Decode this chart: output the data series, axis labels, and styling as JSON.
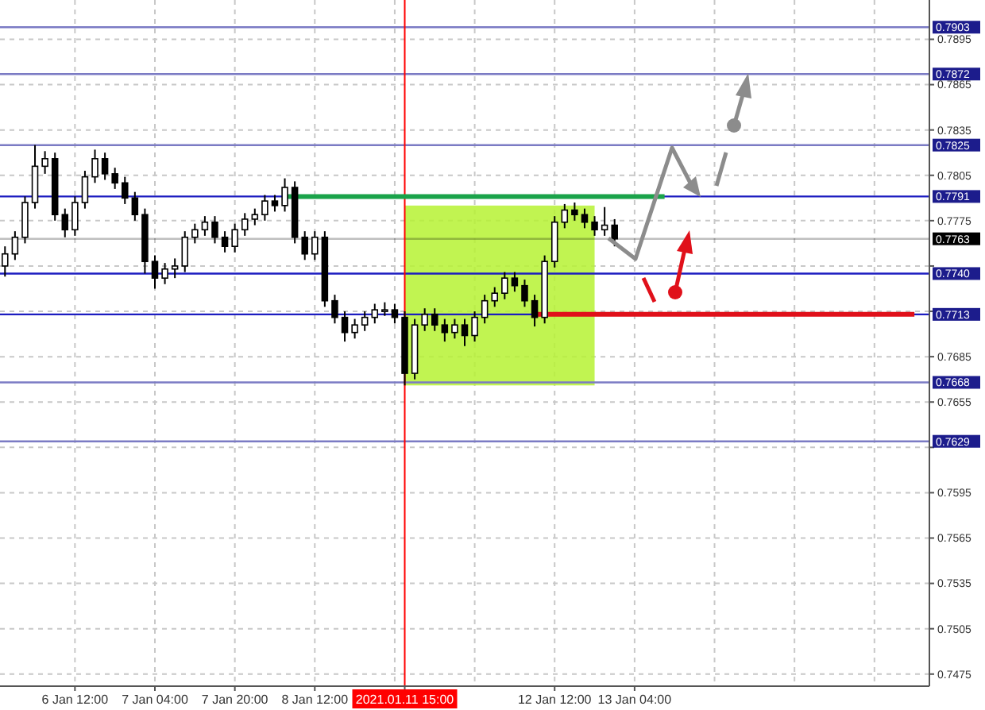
{
  "chart_data": {
    "type": "candlestick",
    "categories": [
      null,
      null,
      null,
      null,
      null,
      null,
      null,
      "6 Jan 12:00",
      null,
      null,
      null,
      null,
      null,
      null,
      null,
      "7 Jan 04:00",
      null,
      null,
      null,
      null,
      null,
      null,
      null,
      "7 Jan 20:00",
      null,
      null,
      null,
      null,
      null,
      null,
      null,
      "8 Jan 12:00",
      null,
      null,
      null,
      null,
      null,
      null,
      null,
      null,
      "2021.01.11 15:00",
      null,
      null,
      null,
      null,
      null,
      null,
      null,
      null,
      null,
      null,
      null,
      null,
      null,
      null,
      "12 Jan 12:00",
      null,
      null,
      null,
      null,
      null,
      null,
      null,
      "13 Jan 04:00",
      null,
      null,
      null,
      null,
      null,
      null,
      null,
      null,
      null,
      null,
      null,
      null,
      null,
      null,
      null,
      null,
      null,
      null,
      null,
      null,
      null,
      null,
      null,
      null,
      null,
      null,
      null,
      null,
      null
    ],
    "ohlc": [
      [
        0.7745,
        0.7758,
        0.7738,
        0.7753
      ],
      [
        0.7753,
        0.7768,
        0.7749,
        0.7764
      ],
      [
        0.7764,
        0.7791,
        0.776,
        0.7787
      ],
      [
        0.7787,
        0.7825,
        0.7783,
        0.7811
      ],
      [
        0.7811,
        0.7821,
        0.7806,
        0.7816
      ],
      [
        0.7816,
        0.782,
        0.7775,
        0.7779
      ],
      [
        0.7779,
        0.7783,
        0.7764,
        0.7769
      ],
      [
        0.7769,
        0.7791,
        0.7765,
        0.7787
      ],
      [
        0.7787,
        0.7808,
        0.7783,
        0.7804
      ],
      [
        0.7804,
        0.7822,
        0.78,
        0.7816
      ],
      [
        0.7816,
        0.782,
        0.7802,
        0.7806
      ],
      [
        0.7806,
        0.781,
        0.7796,
        0.78
      ],
      [
        0.78,
        0.7804,
        0.7786,
        0.779
      ],
      [
        0.779,
        0.7794,
        0.7775,
        0.7779
      ],
      [
        0.7779,
        0.7783,
        0.774,
        0.7748
      ],
      [
        0.7748,
        0.7752,
        0.773,
        0.7737
      ],
      [
        0.7737,
        0.7747,
        0.7733,
        0.7743
      ],
      [
        0.7743,
        0.775,
        0.7737,
        0.7745
      ],
      [
        0.7745,
        0.7768,
        0.7741,
        0.7764
      ],
      [
        0.7764,
        0.7773,
        0.776,
        0.7769
      ],
      [
        0.7769,
        0.7778,
        0.7765,
        0.7774
      ],
      [
        0.7774,
        0.7778,
        0.776,
        0.7764
      ],
      [
        0.7764,
        0.7768,
        0.7754,
        0.7758
      ],
      [
        0.7758,
        0.7773,
        0.7754,
        0.7769
      ],
      [
        0.7769,
        0.778,
        0.7765,
        0.7776
      ],
      [
        0.7776,
        0.7783,
        0.7772,
        0.7779
      ],
      [
        0.7779,
        0.7792,
        0.7775,
        0.7788
      ],
      [
        0.7788,
        0.7792,
        0.7781,
        0.7785
      ],
      [
        0.7785,
        0.7803,
        0.7781,
        0.7797
      ],
      [
        0.7797,
        0.7801,
        0.776,
        0.7764
      ],
      [
        0.7764,
        0.7768,
        0.7749,
        0.7753
      ],
      [
        0.7753,
        0.7768,
        0.7749,
        0.7764
      ],
      [
        0.7764,
        0.7768,
        0.7718,
        0.7722
      ],
      [
        0.7722,
        0.7726,
        0.7707,
        0.7711
      ],
      [
        0.7711,
        0.7715,
        0.7695,
        0.7701
      ],
      [
        0.7701,
        0.771,
        0.7697,
        0.7706
      ],
      [
        0.7706,
        0.7715,
        0.7702,
        0.7711
      ],
      [
        0.7711,
        0.772,
        0.7707,
        0.7716
      ],
      [
        0.7716,
        0.7721,
        0.7712,
        0.7716
      ],
      [
        0.7716,
        0.772,
        0.7707,
        0.7711
      ],
      [
        0.7711,
        0.7715,
        0.7666,
        0.7674
      ],
      [
        0.7674,
        0.771,
        0.767,
        0.7706
      ],
      [
        0.7706,
        0.7717,
        0.7702,
        0.7713
      ],
      [
        0.7713,
        0.7717,
        0.7702,
        0.7706
      ],
      [
        0.7706,
        0.771,
        0.7695,
        0.7701
      ],
      [
        0.7701,
        0.771,
        0.7697,
        0.7706
      ],
      [
        0.7706,
        0.771,
        0.7692,
        0.7699
      ],
      [
        0.7699,
        0.7715,
        0.7695,
        0.7711
      ],
      [
        0.7711,
        0.7726,
        0.7707,
        0.7722
      ],
      [
        0.7722,
        0.7731,
        0.7718,
        0.7727
      ],
      [
        0.7727,
        0.7741,
        0.7723,
        0.7737
      ],
      [
        0.7737,
        0.7741,
        0.7728,
        0.7732
      ],
      [
        0.7732,
        0.7736,
        0.7718,
        0.7722
      ],
      [
        0.7722,
        0.7726,
        0.7705,
        0.7711
      ],
      [
        0.7711,
        0.7752,
        0.7707,
        0.7748
      ],
      [
        0.7748,
        0.7778,
        0.7744,
        0.7774
      ],
      [
        0.7774,
        0.7786,
        0.777,
        0.7782
      ],
      [
        0.7782,
        0.7787,
        0.7775,
        0.7779
      ],
      [
        0.7779,
        0.7783,
        0.777,
        0.7774
      ],
      [
        0.7774,
        0.7778,
        0.7765,
        0.7769
      ],
      [
        0.7769,
        0.7784,
        0.7765,
        0.7772
      ],
      [
        0.7772,
        0.7776,
        0.7758,
        0.7763
      ],
      null,
      null,
      null,
      null,
      null,
      null,
      null,
      null,
      null,
      null,
      null,
      null,
      null,
      null,
      null,
      null,
      null,
      null,
      null,
      null,
      null,
      null,
      null,
      null,
      null,
      null,
      null,
      null,
      null,
      null,
      null
    ],
    "series": [
      {
        "type": "line",
        "color": "#1aa34a",
        "values": [
          null,
          null,
          null,
          null,
          null,
          null,
          null,
          null,
          null,
          null,
          null,
          null,
          null,
          null,
          null,
          null,
          null,
          null,
          null,
          null,
          null,
          null,
          null,
          null,
          null,
          null,
          null,
          null,
          0.7791,
          0.7791,
          0.7791,
          0.7791,
          0.7791,
          0.7791,
          0.7791,
          0.7791,
          0.7791,
          0.7791,
          0.7791,
          0.7791,
          0.7791,
          0.7791,
          0.7791,
          0.7791,
          0.7791,
          0.7791,
          0.7791,
          0.7791,
          0.7791,
          0.7791,
          0.7791,
          0.7791,
          0.7791,
          0.7791,
          0.7791,
          0.7791,
          0.7791,
          0.7791,
          0.7791,
          0.7791,
          0.7791,
          0.7791,
          0.7791,
          0.7791,
          0.7791,
          0.7791,
          0.7791,
          null,
          null,
          null,
          null,
          null,
          null,
          null,
          null,
          null,
          null,
          null,
          null,
          null,
          null,
          null,
          null,
          null,
          null,
          null,
          null,
          null,
          null,
          null,
          null,
          null,
          null
        ]
      },
      {
        "type": "line",
        "color": "#e0101a",
        "values": [
          null,
          null,
          null,
          null,
          null,
          null,
          null,
          null,
          null,
          null,
          null,
          null,
          null,
          null,
          null,
          null,
          null,
          null,
          null,
          null,
          null,
          null,
          null,
          null,
          null,
          null,
          null,
          null,
          null,
          null,
          null,
          null,
          null,
          null,
          null,
          null,
          null,
          null,
          null,
          null,
          null,
          null,
          null,
          null,
          null,
          null,
          null,
          null,
          null,
          null,
          null,
          null,
          null,
          0.7713,
          0.7713,
          0.7713,
          0.7713,
          0.7713,
          0.7713,
          0.7713,
          0.7713,
          0.7713,
          0.7713,
          0.7713,
          0.7713,
          0.7713,
          0.7713,
          0.7713,
          0.7713,
          0.7713,
          0.7713,
          0.7713,
          0.7713,
          0.7713,
          0.7713,
          0.7713,
          0.7713,
          0.7713,
          0.7713,
          0.7713,
          0.7713,
          0.7713,
          0.7713,
          0.7713,
          0.7713,
          0.7713,
          0.7713,
          0.7713,
          0.7713,
          0.7713,
          0.7713,
          0.7713,
          null
        ]
      }
    ],
    "ylim": [
      0.7467,
      0.7921
    ],
    "yticks": [
      0.7895,
      0.7865,
      0.7835,
      0.7805,
      0.7775,
      {
        "value": 0.7745,
        "label": null
      },
      {
        "value": 0.7715,
        "label": null
      },
      0.7685,
      0.7655,
      {
        "value": 0.7625,
        "label": null
      },
      0.7595,
      0.7565,
      0.7535,
      0.7505,
      0.7475
    ],
    "grid": true,
    "ref_lines": [
      {
        "axis": "y",
        "value": 0.7903,
        "label": "0.7903",
        "color": "#7b7bc4"
      },
      {
        "axis": "y",
        "value": 0.7872,
        "label": "0.7872",
        "color": "#7b7bc4"
      },
      {
        "axis": "y",
        "value": 0.7825,
        "label": "0.7825",
        "color": "#7b7bc4"
      },
      {
        "axis": "y",
        "value": 0.7791,
        "label": "0.7791",
        "color": "#1c1cc0"
      },
      {
        "axis": "y",
        "value": 0.7763,
        "label": "0.7763",
        "color": "#000000"
      },
      {
        "axis": "y",
        "value": 0.774,
        "label": "0.7740",
        "color": "#1c1cc0"
      },
      {
        "axis": "y",
        "value": 0.7713,
        "label": "0.7713",
        "color": "#1c1cc0"
      },
      {
        "axis": "y",
        "value": 0.7668,
        "label": "0.7668",
        "color": "#7b7bc4"
      },
      {
        "axis": "y",
        "value": 0.7629,
        "label": "0.7629",
        "color": "#7b7bc4"
      },
      {
        "axis": "x",
        "value": "2021.01.11 15:00",
        "color": "#ff0000"
      }
    ]
  }
}
